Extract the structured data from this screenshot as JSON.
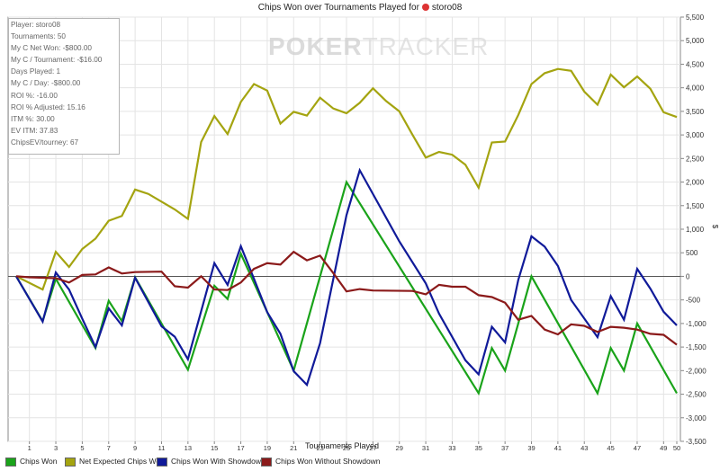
{
  "title": {
    "text": "Chips Won over Tournaments Played for",
    "player": "storo08"
  },
  "watermark": {
    "bold": "POKER",
    "thin": "TRACKER"
  },
  "stats": [
    "Player: storo08",
    "Tournaments: 50",
    "My C Net Won: -$800.00",
    "My C / Tournament: -$16.00",
    "Days Played: 1",
    "My C / Day: -$800.00",
    "ROI %: -16.00",
    "ROI % Adjusted: 15.16",
    "ITM %: 30.00",
    "EV ITM: 37.83",
    "ChipsEV/tourney: 67"
  ],
  "legend": [
    {
      "label": "Chips Won",
      "color": "#1aa31a"
    },
    {
      "label": "Net Expected Chips Won",
      "color": "#a4a410"
    },
    {
      "label": "Chips Won With Showdown",
      "color": "#101a99"
    },
    {
      "label": "Chips Won Without Showdown",
      "color": "#8b1a1a"
    }
  ],
  "chart_data": {
    "type": "line",
    "xlabel": "Tournaments Played",
    "ylabel": "$",
    "xlim": [
      0,
      50
    ],
    "ylim": [
      -3500,
      5500
    ],
    "x_ticks": [
      1,
      3,
      5,
      7,
      9,
      11,
      13,
      15,
      17,
      19,
      21,
      23,
      25,
      27,
      29,
      31,
      33,
      35,
      37,
      39,
      41,
      43,
      45,
      47,
      49,
      50
    ],
    "y_ticks": [
      5500,
      5000,
      4500,
      4000,
      3500,
      3000,
      2500,
      2000,
      1500,
      1000,
      500,
      0,
      -500,
      -1000,
      -1500,
      -2000,
      -2500,
      -3000,
      -3500
    ],
    "y_tick_labels": [
      "5,500",
      "5,000",
      "4,500",
      "4,000",
      "3,500",
      "3,000",
      "2,500",
      "2,000",
      "1,500",
      "1,000",
      "500",
      "0",
      "-500",
      "-1,000",
      "-1,500",
      "-2,000",
      "-2,500",
      "-3,000",
      "-3,500"
    ],
    "grid": true,
    "legend_position": "bottom",
    "series": [
      {
        "name": "Chips Won",
        "color": "#1aa31a",
        "points": [
          [
            0,
            0
          ],
          [
            2,
            -950
          ],
          [
            3,
            -50
          ],
          [
            6,
            -1520
          ],
          [
            7,
            -520
          ],
          [
            8,
            -950
          ],
          [
            9,
            -20
          ],
          [
            13,
            -1980
          ],
          [
            15,
            -200
          ],
          [
            16,
            -480
          ],
          [
            17,
            480
          ],
          [
            21,
            -2000
          ],
          [
            25,
            2000
          ],
          [
            35,
            -2480
          ],
          [
            36,
            -1520
          ],
          [
            37,
            -2000
          ],
          [
            39,
            0
          ],
          [
            44,
            -2480
          ],
          [
            45,
            -1520
          ],
          [
            46,
            -2000
          ],
          [
            47,
            -1000
          ],
          [
            50,
            -2480
          ]
        ]
      },
      {
        "name": "Net Expected Chips Won",
        "color": "#a4a410",
        "points": [
          [
            0,
            0
          ],
          [
            2,
            -280
          ],
          [
            3,
            520
          ],
          [
            4,
            200
          ],
          [
            5,
            580
          ],
          [
            6,
            800
          ],
          [
            7,
            1180
          ],
          [
            8,
            1280
          ],
          [
            9,
            1840
          ],
          [
            10,
            1750
          ],
          [
            12,
            1420
          ],
          [
            13,
            1220
          ],
          [
            14,
            2850
          ],
          [
            15,
            3400
          ],
          [
            16,
            3020
          ],
          [
            17,
            3700
          ],
          [
            18,
            4080
          ],
          [
            19,
            3940
          ],
          [
            20,
            3240
          ],
          [
            21,
            3490
          ],
          [
            22,
            3410
          ],
          [
            23,
            3790
          ],
          [
            24,
            3560
          ],
          [
            25,
            3460
          ],
          [
            26,
            3680
          ],
          [
            27,
            3990
          ],
          [
            28,
            3720
          ],
          [
            29,
            3500
          ],
          [
            30,
            3000
          ],
          [
            31,
            2520
          ],
          [
            32,
            2640
          ],
          [
            33,
            2580
          ],
          [
            34,
            2370
          ],
          [
            35,
            1880
          ],
          [
            36,
            2840
          ],
          [
            37,
            2860
          ],
          [
            38,
            3420
          ],
          [
            39,
            4080
          ],
          [
            40,
            4310
          ],
          [
            41,
            4400
          ],
          [
            42,
            4360
          ],
          [
            43,
            3920
          ],
          [
            44,
            3640
          ],
          [
            45,
            4280
          ],
          [
            46,
            4010
          ],
          [
            47,
            4240
          ],
          [
            48,
            3980
          ],
          [
            49,
            3480
          ],
          [
            50,
            3380
          ]
        ]
      },
      {
        "name": "Chips Won With Showdown",
        "color": "#101a99",
        "points": [
          [
            0,
            0
          ],
          [
            2,
            -960
          ],
          [
            3,
            80
          ],
          [
            4,
            -280
          ],
          [
            5,
            -900
          ],
          [
            6,
            -1500
          ],
          [
            7,
            -680
          ],
          [
            8,
            -1040
          ],
          [
            9,
            -30
          ],
          [
            11,
            -1060
          ],
          [
            12,
            -1280
          ],
          [
            13,
            -1760
          ],
          [
            15,
            280
          ],
          [
            16,
            -180
          ],
          [
            17,
            640
          ],
          [
            18,
            -50
          ],
          [
            19,
            -760
          ],
          [
            20,
            -1220
          ],
          [
            21,
            -2010
          ],
          [
            22,
            -2300
          ],
          [
            23,
            -1420
          ],
          [
            25,
            1300
          ],
          [
            26,
            2250
          ],
          [
            29,
            740
          ],
          [
            31,
            -150
          ],
          [
            32,
            -790
          ],
          [
            34,
            -1780
          ],
          [
            35,
            -2080
          ],
          [
            36,
            -1070
          ],
          [
            37,
            -1400
          ],
          [
            38,
            -80
          ],
          [
            39,
            850
          ],
          [
            40,
            630
          ],
          [
            41,
            220
          ],
          [
            42,
            -500
          ],
          [
            44,
            -1290
          ],
          [
            45,
            -420
          ],
          [
            46,
            -920
          ],
          [
            47,
            160
          ],
          [
            48,
            -260
          ],
          [
            49,
            -750
          ],
          [
            50,
            -1040
          ]
        ]
      },
      {
        "name": "Chips Won Without Showdown",
        "color": "#8b1a1a",
        "points": [
          [
            0,
            0
          ],
          [
            1,
            -20
          ],
          [
            2,
            -30
          ],
          [
            3,
            -40
          ],
          [
            4,
            -130
          ],
          [
            5,
            30
          ],
          [
            6,
            40
          ],
          [
            7,
            190
          ],
          [
            8,
            60
          ],
          [
            9,
            90
          ],
          [
            11,
            100
          ],
          [
            12,
            -210
          ],
          [
            13,
            -240
          ],
          [
            14,
            0
          ],
          [
            15,
            -280
          ],
          [
            16,
            -290
          ],
          [
            17,
            -130
          ],
          [
            18,
            160
          ],
          [
            19,
            280
          ],
          [
            20,
            250
          ],
          [
            21,
            520
          ],
          [
            22,
            340
          ],
          [
            23,
            440
          ],
          [
            24,
            70
          ],
          [
            25,
            -320
          ],
          [
            26,
            -270
          ],
          [
            27,
            -300
          ],
          [
            30,
            -310
          ],
          [
            31,
            -380
          ],
          [
            32,
            -180
          ],
          [
            33,
            -220
          ],
          [
            34,
            -220
          ],
          [
            35,
            -400
          ],
          [
            36,
            -440
          ],
          [
            37,
            -560
          ],
          [
            38,
            -920
          ],
          [
            39,
            -840
          ],
          [
            40,
            -1130
          ],
          [
            41,
            -1230
          ],
          [
            42,
            -1020
          ],
          [
            43,
            -1050
          ],
          [
            44,
            -1180
          ],
          [
            45,
            -1070
          ],
          [
            46,
            -1090
          ],
          [
            47,
            -1130
          ],
          [
            48,
            -1220
          ],
          [
            49,
            -1240
          ],
          [
            50,
            -1450
          ]
        ]
      }
    ]
  }
}
